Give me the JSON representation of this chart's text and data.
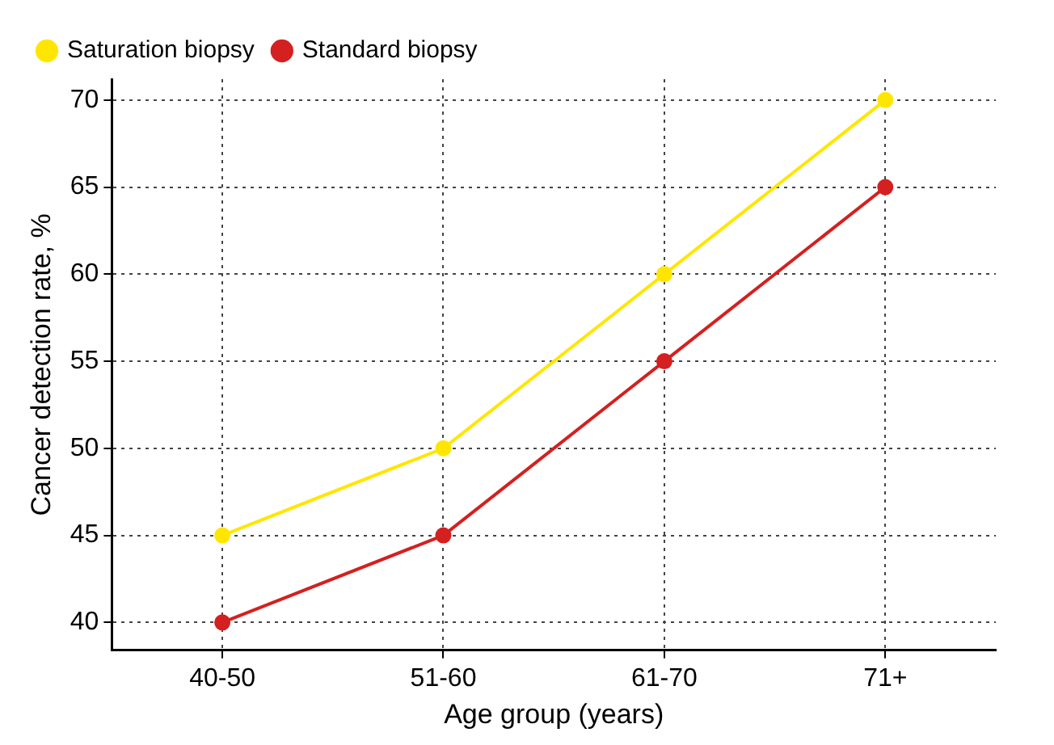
{
  "chart_data": {
    "type": "line",
    "xlabel": "Age group (years)",
    "ylabel": "Cancer detection rate, %",
    "categories": [
      "40-50",
      "51-60",
      "61-70",
      "71+"
    ],
    "series": [
      {
        "name": "Saturation biopsy",
        "color": "#ffe600",
        "values": [
          45,
          50,
          60,
          70
        ]
      },
      {
        "name": "Standard biopsy",
        "color": "#d42020",
        "values": [
          40,
          45,
          55,
          65
        ]
      }
    ],
    "ylim": [
      38.4,
      71.2
    ],
    "yticks": [
      40,
      45,
      50,
      55,
      60,
      65,
      70
    ],
    "grid": true,
    "legend": "top left",
    "marker": "circle",
    "line_style": "solid"
  }
}
